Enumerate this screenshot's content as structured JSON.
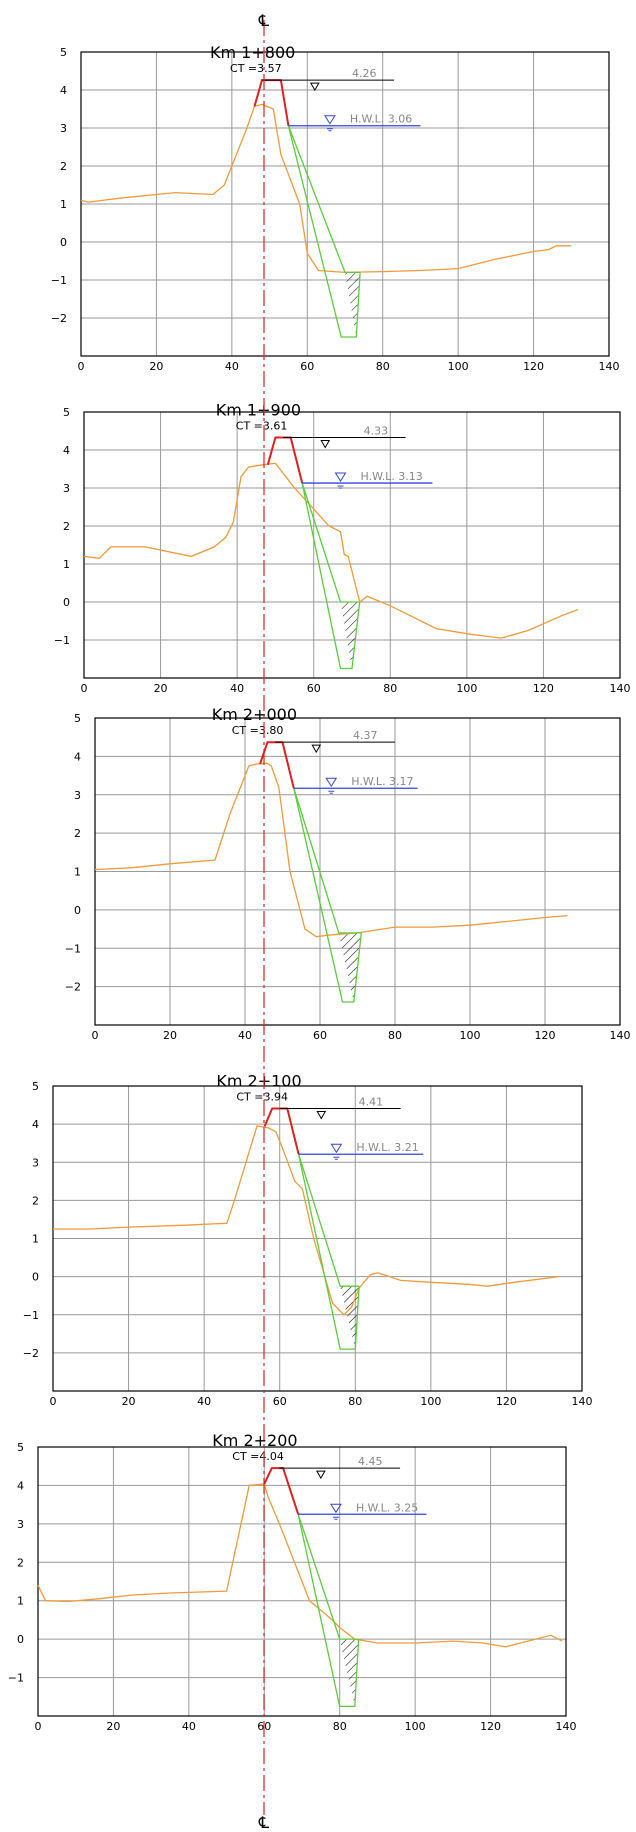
{
  "centerline_label": "℄",
  "colors": {
    "grid": "#9a9a9a",
    "frame": "#000000",
    "ground": "#f39a3a",
    "design": "#e02020",
    "slope": "#5ccc3c",
    "water": "#3344dd",
    "centerline": "#e02020",
    "level_text": "#888888"
  },
  "sections": [
    {
      "title": "Km  1+800",
      "ct_label": "CT  =3.57",
      "top_level_label": "4.26",
      "hwl_label": "H.W.L.  3.06",
      "xticks": [
        "0",
        "20",
        "40",
        "60",
        "80",
        "100",
        "120",
        "140"
      ],
      "yticks": [
        "5",
        "4",
        "3",
        "2",
        "1",
        "0",
        "−1",
        "−2"
      ],
      "x_range": [
        0,
        140
      ],
      "y_range": [
        -3,
        5
      ],
      "centerline_x": 48,
      "top_level_x": [
        48,
        83
      ],
      "top_symbol_x": 62,
      "hwl_line_x": [
        55,
        90
      ],
      "hwl_symbol_x": 66,
      "design_profile": [
        [
          46,
          3.57
        ],
        [
          48,
          4.26
        ],
        [
          53,
          4.26
        ],
        [
          55,
          3.06
        ]
      ],
      "ground_profile": [
        [
          0,
          1.1
        ],
        [
          2,
          1.05
        ],
        [
          10,
          1.15
        ],
        [
          25,
          1.3
        ],
        [
          35,
          1.25
        ],
        [
          38,
          1.5
        ],
        [
          44,
          3.0
        ],
        [
          46,
          3.57
        ],
        [
          48,
          3.62
        ],
        [
          51,
          3.5
        ],
        [
          53,
          2.3
        ],
        [
          58,
          1.0
        ],
        [
          60,
          -0.3
        ],
        [
          63,
          -0.75
        ],
        [
          70,
          -0.8
        ],
        [
          80,
          -0.78
        ],
        [
          90,
          -0.75
        ],
        [
          100,
          -0.7
        ],
        [
          110,
          -0.45
        ],
        [
          120,
          -0.25
        ],
        [
          124,
          -0.2
        ],
        [
          126,
          -0.1
        ],
        [
          130,
          -0.1
        ]
      ],
      "slope_line_1": [
        [
          55,
          3.06
        ],
        [
          69,
          -2.5
        ],
        [
          73,
          -2.5
        ],
        [
          74,
          -0.8
        ]
      ],
      "slope_line_2": [
        [
          55,
          3.06
        ],
        [
          70,
          -0.8
        ],
        [
          74,
          -0.8
        ]
      ],
      "hatch_triangle": [
        [
          70,
          -0.8
        ],
        [
          74,
          -0.8
        ],
        [
          73,
          -2.5
        ]
      ]
    },
    {
      "title": "Km  1+900",
      "ct_label": "CT  =3.61",
      "top_level_label": "4.33",
      "hwl_label": "H.W.L.  3.13",
      "xticks": [
        "0",
        "20",
        "40",
        "60",
        "80",
        "100",
        "120",
        "140"
      ],
      "yticks": [
        "5",
        "4",
        "3",
        "2",
        "1",
        "0",
        "−1"
      ],
      "x_range": [
        0,
        140
      ],
      "y_range": [
        -2,
        5
      ],
      "centerline_x": 48,
      "top_level_x": [
        52,
        84
      ],
      "top_symbol_x": 63,
      "hwl_line_x": [
        57,
        91
      ],
      "hwl_symbol_x": 67,
      "design_profile": [
        [
          48,
          3.61
        ],
        [
          50,
          4.33
        ],
        [
          54,
          4.33
        ],
        [
          57,
          3.13
        ]
      ],
      "ground_profile": [
        [
          0,
          1.2
        ],
        [
          4,
          1.15
        ],
        [
          7,
          1.45
        ],
        [
          16,
          1.45
        ],
        [
          28,
          1.2
        ],
        [
          34,
          1.45
        ],
        [
          37,
          1.7
        ],
        [
          39,
          2.1
        ],
        [
          41,
          3.3
        ],
        [
          43,
          3.55
        ],
        [
          46,
          3.6
        ],
        [
          48,
          3.63
        ],
        [
          50,
          3.65
        ],
        [
          55,
          3.0
        ],
        [
          64,
          2.0
        ],
        [
          67,
          1.85
        ],
        [
          68,
          1.25
        ],
        [
          69,
          1.2
        ],
        [
          72,
          0.0
        ],
        [
          74,
          0.15
        ],
        [
          80,
          -0.1
        ],
        [
          92,
          -0.7
        ],
        [
          101,
          -0.85
        ],
        [
          109,
          -0.95
        ],
        [
          116,
          -0.75
        ],
        [
          125,
          -0.35
        ],
        [
          129,
          -0.2
        ]
      ],
      "slope_line_1": [
        [
          57,
          3.13
        ],
        [
          67,
          -1.75
        ],
        [
          70,
          -1.75
        ],
        [
          72,
          0.0
        ]
      ],
      "slope_line_2": [
        [
          57,
          3.13
        ],
        [
          67,
          0.0
        ],
        [
          72,
          0.0
        ]
      ],
      "hatch_triangle": [
        [
          67,
          0.0
        ],
        [
          72,
          0.0
        ],
        [
          70,
          -1.75
        ]
      ]
    },
    {
      "title": "Km  2+000",
      "ct_label": "CT  =3.80",
      "top_level_label": "4.37",
      "hwl_label": "H.W.L.  3.17",
      "xticks": [
        "0",
        "20",
        "40",
        "60",
        "80",
        "100",
        "120",
        "140"
      ],
      "yticks": [
        "5",
        "4",
        "3",
        "2",
        "1",
        "0",
        "−1",
        "−2"
      ],
      "x_range": [
        0,
        140
      ],
      "y_range": [
        -3,
        5
      ],
      "centerline_x": 45,
      "top_level_x": [
        48,
        80
      ],
      "top_symbol_x": 59,
      "hwl_line_x": [
        53,
        86
      ],
      "hwl_symbol_x": 63,
      "design_profile": [
        [
          44,
          3.8
        ],
        [
          46,
          4.37
        ],
        [
          50,
          4.37
        ],
        [
          53,
          3.17
        ]
      ],
      "ground_profile": [
        [
          0,
          1.05
        ],
        [
          10,
          1.1
        ],
        [
          20,
          1.2
        ],
        [
          32,
          1.3
        ],
        [
          36,
          2.5
        ],
        [
          41,
          3.75
        ],
        [
          43,
          3.8
        ],
        [
          46,
          3.82
        ],
        [
          47,
          3.75
        ],
        [
          49,
          3.2
        ],
        [
          52,
          1.0
        ],
        [
          56,
          -0.5
        ],
        [
          59,
          -0.7
        ],
        [
          63,
          -0.65
        ],
        [
          70,
          -0.6
        ],
        [
          80,
          -0.45
        ],
        [
          90,
          -0.45
        ],
        [
          100,
          -0.4
        ],
        [
          110,
          -0.3
        ],
        [
          120,
          -0.2
        ],
        [
          126,
          -0.15
        ]
      ],
      "slope_line_1": [
        [
          53,
          3.17
        ],
        [
          66,
          -2.4
        ],
        [
          69,
          -2.4
        ],
        [
          71,
          -0.6
        ]
      ],
      "slope_line_2": [
        [
          53,
          3.17
        ],
        [
          65,
          -0.6
        ],
        [
          71,
          -0.6
        ]
      ],
      "hatch_triangle": [
        [
          65,
          -0.6
        ],
        [
          71,
          -0.6
        ],
        [
          69,
          -2.4
        ]
      ]
    },
    {
      "title": "Km  2+100",
      "ct_label": "CT  =3.94",
      "top_level_label": "4.41",
      "hwl_label": "H.W.L.  3.21",
      "xticks": [
        "0",
        "20",
        "40",
        "60",
        "80",
        "100",
        "120",
        "140"
      ],
      "yticks": [
        "5",
        "4",
        "3",
        "2",
        "1",
        "0",
        "−1",
        "−2"
      ],
      "x_range": [
        0,
        140
      ],
      "y_range": [
        -3,
        5
      ],
      "centerline_x": 57,
      "top_level_x": [
        60,
        92
      ],
      "top_symbol_x": 71,
      "hwl_line_x": [
        65,
        98
      ],
      "hwl_symbol_x": 75,
      "design_profile": [
        [
          56,
          3.94
        ],
        [
          58,
          4.41
        ],
        [
          62,
          4.41
        ],
        [
          65,
          3.21
        ]
      ],
      "ground_profile": [
        [
          0,
          1.25
        ],
        [
          10,
          1.25
        ],
        [
          20,
          1.3
        ],
        [
          35,
          1.35
        ],
        [
          46,
          1.4
        ],
        [
          48,
          2.0
        ],
        [
          54,
          3.95
        ],
        [
          57,
          3.9
        ],
        [
          59,
          3.8
        ],
        [
          61,
          3.3
        ],
        [
          64,
          2.5
        ],
        [
          66,
          2.3
        ],
        [
          69,
          1.0
        ],
        [
          74,
          -0.7
        ],
        [
          77,
          -1.0
        ],
        [
          79,
          -0.8
        ],
        [
          81,
          -0.3
        ],
        [
          84,
          0.05
        ],
        [
          86,
          0.1
        ],
        [
          92,
          -0.1
        ],
        [
          100,
          -0.15
        ],
        [
          110,
          -0.2
        ],
        [
          115,
          -0.25
        ],
        [
          122,
          -0.15
        ],
        [
          134,
          0.0
        ]
      ],
      "slope_line_1": [
        [
          65,
          3.21
        ],
        [
          76,
          -1.9
        ],
        [
          80,
          -1.9
        ],
        [
          81,
          -0.25
        ]
      ],
      "slope_line_2": [
        [
          65,
          3.21
        ],
        [
          76,
          -0.25
        ],
        [
          81,
          -0.25
        ]
      ],
      "hatch_triangle": [
        [
          76,
          -0.25
        ],
        [
          81,
          -0.25
        ],
        [
          80,
          -1.9
        ]
      ]
    },
    {
      "title": "Km  2+200",
      "ct_label": "CT  =4.04",
      "top_level_label": "4.45",
      "hwl_label": "H.W.L.  3.25",
      "xticks": [
        "0",
        "20",
        "40",
        "60",
        "80",
        "100",
        "120",
        "140"
      ],
      "yticks": [
        "5",
        "4",
        "3",
        "2",
        "1",
        "0",
        "−1"
      ],
      "x_range": [
        0,
        140
      ],
      "y_range": [
        -2,
        5
      ],
      "centerline_x": 60,
      "top_level_x": [
        64,
        96
      ],
      "top_symbol_x": 75,
      "hwl_line_x": [
        69,
        103
      ],
      "hwl_symbol_x": 79,
      "design_profile": [
        [
          60,
          4.04
        ],
        [
          62,
          4.45
        ],
        [
          65,
          4.45
        ],
        [
          69,
          3.25
        ]
      ],
      "ground_profile": [
        [
          0,
          1.4
        ],
        [
          2,
          1.0
        ],
        [
          8,
          0.98
        ],
        [
          16,
          1.05
        ],
        [
          25,
          1.15
        ],
        [
          35,
          1.2
        ],
        [
          50,
          1.25
        ],
        [
          56,
          4.0
        ],
        [
          60,
          4.04
        ],
        [
          61,
          3.7
        ],
        [
          64,
          3.0
        ],
        [
          68,
          2.0
        ],
        [
          72,
          1.0
        ],
        [
          78,
          0.5
        ],
        [
          80,
          0.3
        ],
        [
          84,
          0.0
        ],
        [
          90,
          -0.1
        ],
        [
          100,
          -0.1
        ],
        [
          110,
          -0.05
        ],
        [
          118,
          -0.1
        ],
        [
          124,
          -0.2
        ],
        [
          132,
          0.0
        ],
        [
          136,
          0.1
        ],
        [
          139,
          -0.05
        ]
      ],
      "slope_line_1": [
        [
          69,
          3.25
        ],
        [
          80,
          -1.75
        ],
        [
          84,
          -1.75
        ],
        [
          85,
          0.0
        ]
      ],
      "slope_line_2": [
        [
          69,
          3.25
        ],
        [
          80,
          0.0
        ],
        [
          85,
          0.0
        ]
      ],
      "hatch_triangle": [
        [
          80,
          0.0
        ],
        [
          85,
          0.0
        ],
        [
          84,
          -1.75
        ]
      ]
    }
  ]
}
